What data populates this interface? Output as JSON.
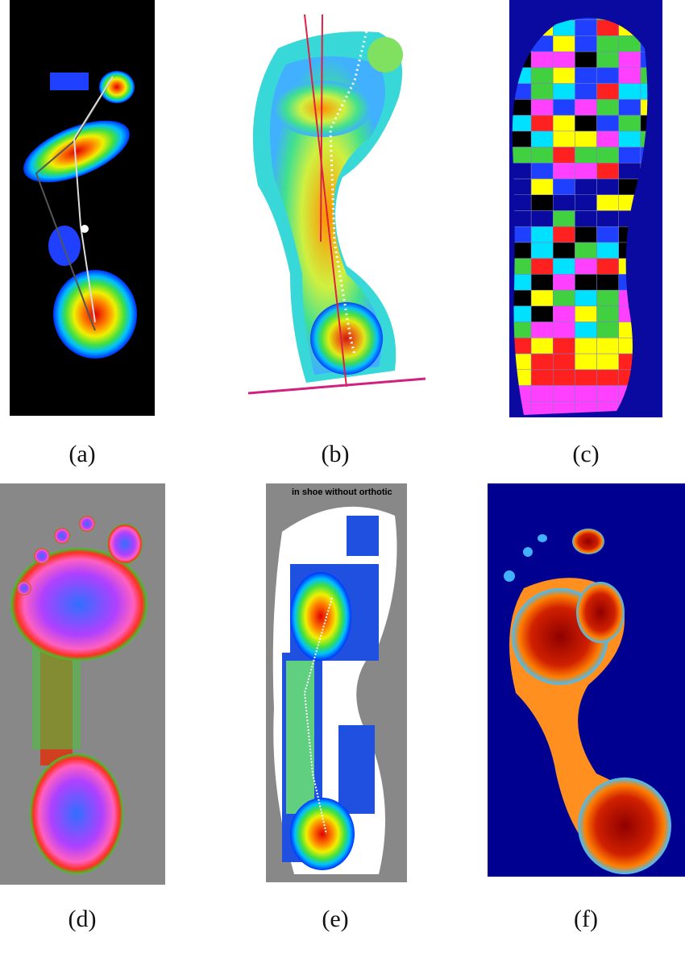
{
  "panels": [
    {
      "label": "(a)"
    },
    {
      "label": "(b)"
    },
    {
      "label": "(c)"
    },
    {
      "label": "(d)"
    },
    {
      "label": "(e)",
      "caption": "in shoe without orthotic"
    },
    {
      "label": "(f)"
    }
  ]
}
